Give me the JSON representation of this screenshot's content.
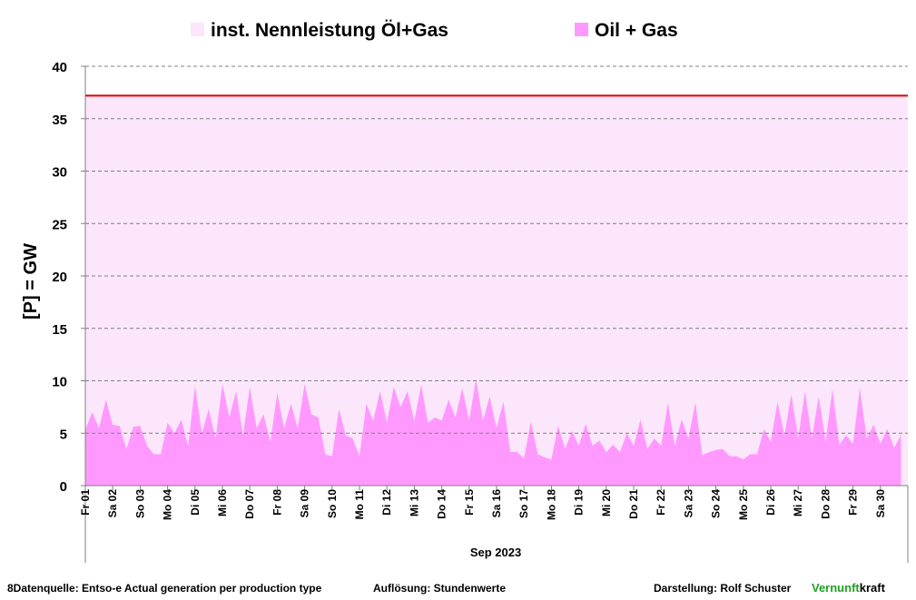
{
  "chart_data": {
    "type": "area",
    "y_label": "[P]  = GW",
    "x_label": "Sep 2023",
    "ylim": [
      0,
      40
    ],
    "yticks": [
      0,
      5,
      10,
      15,
      20,
      25,
      30,
      35,
      40
    ],
    "grid": true,
    "xlim": [
      0,
      720
    ],
    "xticks": [
      {
        "value": 0,
        "label": "Fr 01"
      },
      {
        "value": 24,
        "label": "Sa 02"
      },
      {
        "value": 48,
        "label": "So 03"
      },
      {
        "value": 72,
        "label": "Mo 04"
      },
      {
        "value": 96,
        "label": "Di 05"
      },
      {
        "value": 120,
        "label": "Mi 06"
      },
      {
        "value": 144,
        "label": "Do 07"
      },
      {
        "value": 168,
        "label": "Fr 08"
      },
      {
        "value": 192,
        "label": "Sa 09"
      },
      {
        "value": 216,
        "label": "So 10"
      },
      {
        "value": 240,
        "label": "Mo 11"
      },
      {
        "value": 264,
        "label": "Di 12"
      },
      {
        "value": 288,
        "label": "Mi 13"
      },
      {
        "value": 312,
        "label": "Do 14"
      },
      {
        "value": 336,
        "label": "Fr 15"
      },
      {
        "value": 360,
        "label": "Sa 16"
      },
      {
        "value": 384,
        "label": "So 17"
      },
      {
        "value": 408,
        "label": "Mo 18"
      },
      {
        "value": 432,
        "label": "Di 19"
      },
      {
        "value": 456,
        "label": "Mi 20"
      },
      {
        "value": 480,
        "label": "Do 21"
      },
      {
        "value": 504,
        "label": "Fr 22"
      },
      {
        "value": 528,
        "label": "Sa 23"
      },
      {
        "value": 552,
        "label": "So 24"
      },
      {
        "value": 576,
        "label": "Mo 25"
      },
      {
        "value": 600,
        "label": "Di 26"
      },
      {
        "value": 624,
        "label": "Mi 27"
      },
      {
        "value": 648,
        "label": "Do 28"
      },
      {
        "value": 672,
        "label": "Fr 29"
      },
      {
        "value": 696,
        "label": "Sa 30"
      }
    ],
    "series": [
      {
        "name": "inst. Nennleistung Öl+Gas",
        "color": "#fbe6fb",
        "line_color": "#e00000",
        "x": [
          0,
          720
        ],
        "values": [
          37.2,
          37.2
        ]
      },
      {
        "name": "Oil + Gas",
        "color": "#ff99ff",
        "x": [
          0,
          6,
          12,
          18,
          24,
          30,
          36,
          42,
          48,
          54,
          60,
          66,
          72,
          78,
          84,
          90,
          96,
          102,
          108,
          114,
          120,
          126,
          132,
          138,
          144,
          150,
          156,
          162,
          168,
          174,
          180,
          186,
          192,
          198,
          204,
          210,
          216,
          222,
          228,
          234,
          240,
          246,
          252,
          258,
          264,
          270,
          276,
          282,
          288,
          294,
          300,
          306,
          312,
          318,
          324,
          330,
          336,
          342,
          348,
          354,
          360,
          366,
          372,
          378,
          384,
          390,
          396,
          402,
          408,
          414,
          420,
          426,
          432,
          438,
          444,
          450,
          456,
          462,
          468,
          474,
          480,
          486,
          492,
          498,
          504,
          510,
          516,
          522,
          528,
          534,
          540,
          546,
          552,
          558,
          564,
          570,
          576,
          582,
          588,
          594,
          600,
          606,
          612,
          618,
          624,
          630,
          636,
          642,
          648,
          654,
          660,
          666,
          672,
          678,
          684,
          690,
          696,
          702,
          708,
          714
        ],
        "values": [
          5.3,
          7.0,
          5.5,
          8.2,
          5.8,
          5.7,
          3.5,
          5.6,
          5.7,
          3.8,
          3.0,
          3.0,
          6.0,
          5.0,
          6.3,
          3.8,
          9.5,
          5.0,
          7.3,
          4.5,
          9.7,
          6.5,
          9.0,
          4.8,
          9.4,
          5.5,
          6.8,
          4.2,
          8.8,
          5.5,
          7.8,
          5.5,
          9.7,
          6.8,
          6.5,
          3.0,
          2.8,
          7.3,
          4.8,
          4.5,
          2.8,
          7.8,
          6.2,
          9.0,
          6.0,
          9.4,
          7.5,
          9.0,
          6.2,
          9.6,
          6.0,
          6.5,
          6.2,
          8.2,
          6.5,
          9.3,
          6.2,
          10.2,
          6.2,
          8.5,
          5.5,
          8.0,
          3.2,
          3.2,
          2.6,
          6.1,
          3.0,
          2.7,
          2.5,
          5.7,
          3.5,
          5.2,
          3.8,
          5.9,
          3.8,
          4.3,
          3.2,
          3.9,
          3.2,
          5.0,
          3.8,
          6.3,
          3.5,
          4.5,
          3.8,
          7.9,
          3.8,
          6.3,
          4.5,
          7.9,
          2.9,
          3.2,
          3.4,
          3.5,
          2.8,
          2.8,
          2.5,
          3.0,
          3.0,
          5.4,
          4.2,
          8.0,
          4.8,
          8.7,
          4.5,
          9.0,
          4.5,
          8.5,
          4.2,
          9.2,
          3.9,
          4.8,
          4.0,
          9.3,
          4.5,
          5.8,
          4.0,
          5.4,
          3.6,
          4.8
        ]
      }
    ]
  },
  "footer": {
    "source": "8Datenquelle: Entso-e  Actual generation per production type",
    "resolution": "Auflösung: Stundenwerte",
    "author": "Darstellung:  Rolf Schuster",
    "brand_a": "Vernunft",
    "brand_b": "kraft"
  }
}
